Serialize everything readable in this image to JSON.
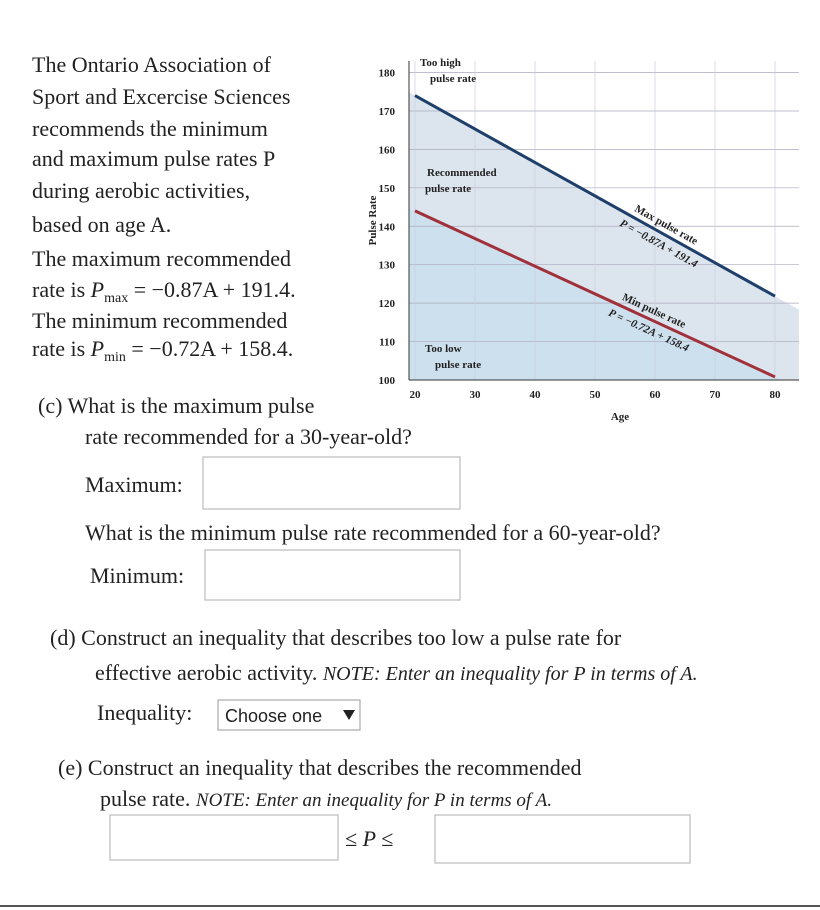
{
  "intro_lines": [
    "The Ontario Association of",
    "Sport and Excercise Sciences",
    "recommends the minimum",
    "and maximum pulse rates P",
    "during aerobic activities,",
    "based on age A.",
    "The maximum recommended",
    {
      "before": "rate is ",
      "var": "P",
      "sub": "max",
      "after": " = −0.87A + 191.4."
    },
    "The minimum recommended",
    {
      "before": "rate is ",
      "var": "P",
      "sub": "min",
      "after": " = −0.72A + 158.4."
    }
  ],
  "chart_data": {
    "type": "line",
    "xlabel": "Age",
    "ylabel": "Pulse Rate",
    "x": [
      20,
      80
    ],
    "series": [
      {
        "name": "Max pulse rate",
        "equation": "P = −0.87A + 191.4",
        "color": "#1f3f6b",
        "values": [
          174,
          121.8
        ]
      },
      {
        "name": "Min pulse rate",
        "equation": "P = −0.72A + 158.4",
        "color": "#a0303a",
        "values": [
          144,
          100.8
        ]
      }
    ],
    "regions": [
      [
        "Too high",
        "pulse rate"
      ],
      [
        "Recommended",
        "pulse rate"
      ],
      [
        "Too low",
        "pulse rate"
      ]
    ],
    "region_colors": [
      "#ffffff",
      "#dce5ee",
      "#cde0ed"
    ],
    "xlim": [
      19,
      84
    ],
    "ylim": [
      100,
      183
    ],
    "xticks": [
      20,
      30,
      40,
      50,
      60,
      70,
      80
    ],
    "yticks": [
      100,
      110,
      120,
      130,
      140,
      150,
      160,
      170,
      180
    ],
    "grid": true
  },
  "question_c": {
    "lines": [
      "(c) What is the maximum pulse",
      "rate recommended for a 30-year-old?"
    ],
    "answer_label": "Maximum:",
    "follow_up": "What is the minimum pulse rate recommended for a 60-year-old?",
    "follow_up_label": "Minimum:"
  },
  "question_d": {
    "line1": "(d) Construct an inequality that describes too low a pulse rate for",
    "line2": "effective aerobic activity. ",
    "note": "NOTE: Enter an inequality for P in terms of A.",
    "label": "Inequality:",
    "dropdown": "Choose one"
  },
  "question_e": {
    "line1": "(e) Construct an inequality that describes the recommended",
    "line2": "pulse rate. ",
    "note": "NOTE: Enter an inequality for P in terms of A.",
    "relation": "≤ P ≤"
  }
}
